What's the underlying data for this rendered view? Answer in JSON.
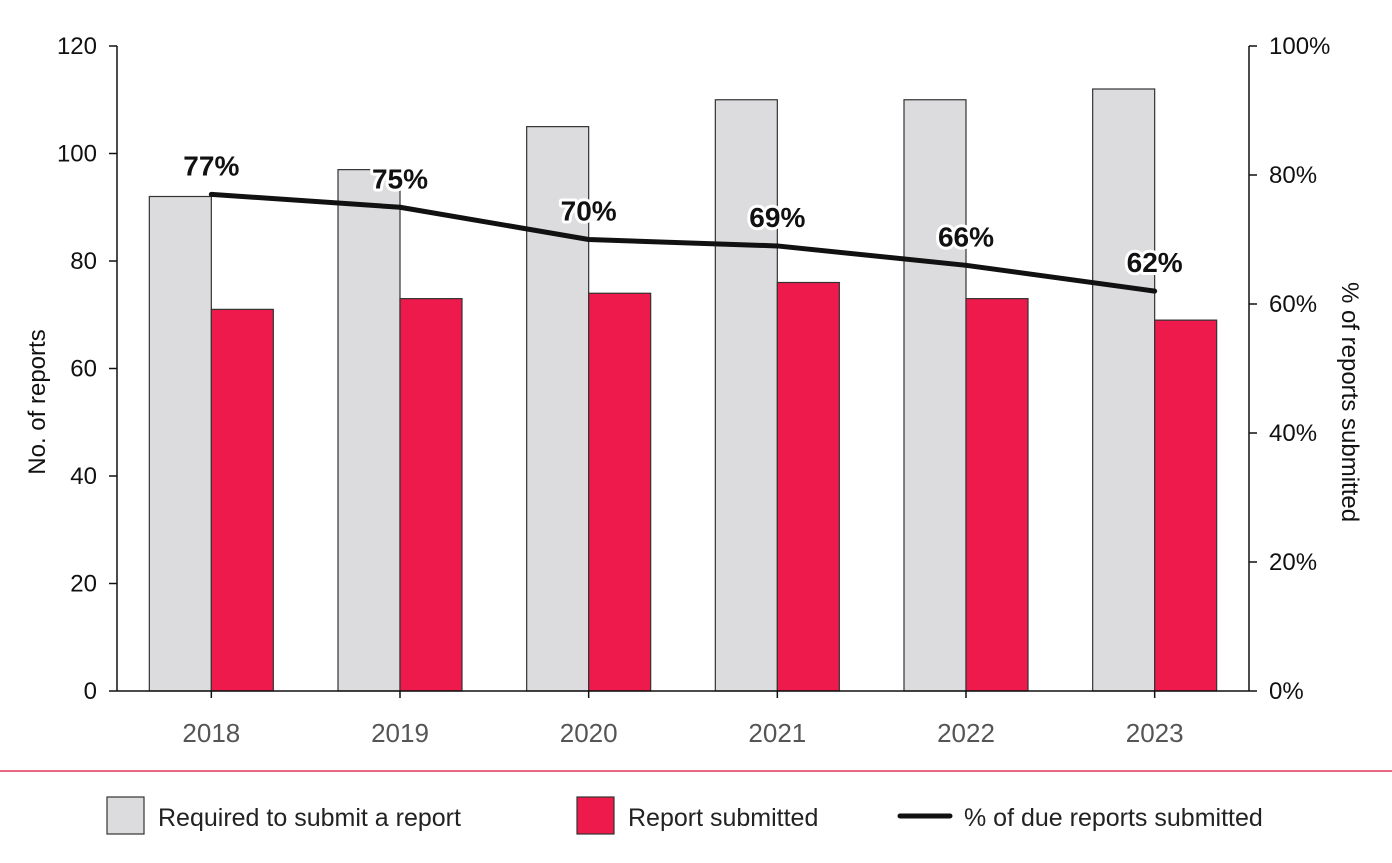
{
  "chart_data": {
    "type": "bar",
    "categories": [
      "2018",
      "2019",
      "2020",
      "2021",
      "2022",
      "2023"
    ],
    "series": [
      {
        "name": "Required to submit a report",
        "type": "bar",
        "axis": "left",
        "color": "#dcdcde",
        "values": [
          92,
          97,
          105,
          110,
          110,
          112
        ]
      },
      {
        "name": "Report submitted",
        "type": "bar",
        "axis": "left",
        "color": "#ee1a4b",
        "values": [
          71,
          73,
          74,
          76,
          73,
          69
        ]
      },
      {
        "name": "% of due reports submitted",
        "type": "line",
        "axis": "right",
        "color": "#111111",
        "values": [
          77,
          75,
          70,
          69,
          66,
          62
        ]
      }
    ],
    "data_labels": [
      "77%",
      "75%",
      "70%",
      "69%",
      "66%",
      "62%"
    ],
    "ylabel": "No. of reports",
    "ylim": [
      0,
      120
    ],
    "yticks": [
      "0",
      "20",
      "40",
      "60",
      "80",
      "100",
      "120"
    ],
    "ylabel_right": "% of reports submitted",
    "ylim_right": [
      0,
      100
    ],
    "yticks_right": [
      "0%",
      "20%",
      "40%",
      "60%",
      "80%",
      "100%"
    ],
    "grid": false,
    "legend_position": "bottom"
  },
  "colors": {
    "divider": "#e0365c",
    "bar_outline": "#333333",
    "axis": "#111111"
  }
}
